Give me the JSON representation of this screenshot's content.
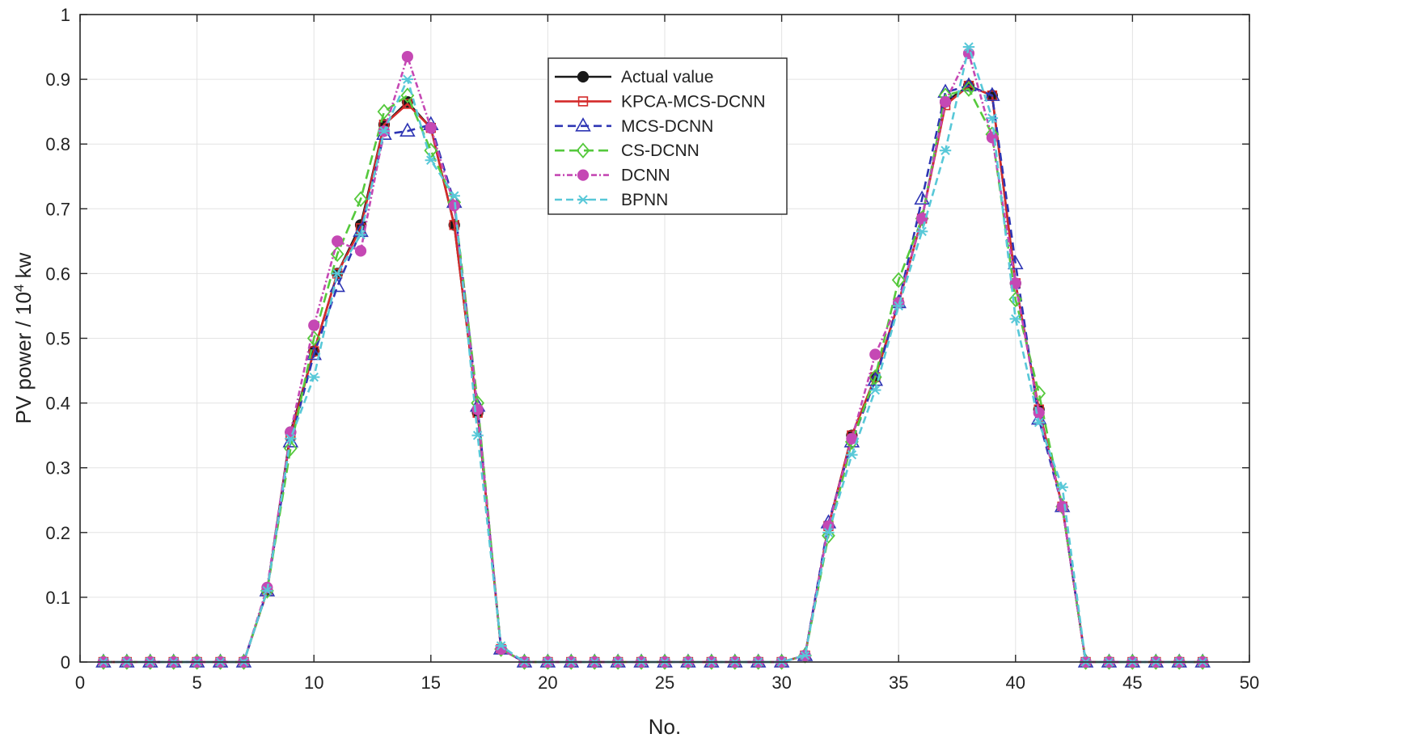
{
  "chart_data": {
    "type": "line",
    "title": "",
    "xlabel": "No.",
    "ylabel_prefix": "PV power / 10",
    "ylabel_exp": "4",
    "ylabel_suffix": " kw",
    "xlim": [
      0,
      50
    ],
    "ylim": [
      0,
      1
    ],
    "xticks": [
      0,
      5,
      10,
      15,
      20,
      25,
      30,
      35,
      40,
      45,
      50
    ],
    "yticks": [
      0,
      0.1,
      0.2,
      0.3,
      0.4,
      0.5,
      0.6,
      0.7,
      0.8,
      0.9,
      1
    ],
    "grid": true,
    "legend_position": "top-center",
    "x": [
      1,
      2,
      3,
      4,
      5,
      6,
      7,
      8,
      9,
      10,
      11,
      12,
      13,
      14,
      15,
      16,
      17,
      18,
      19,
      20,
      21,
      22,
      23,
      24,
      25,
      26,
      27,
      28,
      29,
      30,
      31,
      32,
      33,
      34,
      35,
      36,
      37,
      38,
      39,
      40,
      41,
      42,
      43,
      44,
      45,
      46,
      47,
      48
    ],
    "series": [
      {
        "name": "Actual value",
        "color": "#1a1a1a",
        "dash": "",
        "marker": "filled-circle",
        "values": [
          0,
          0,
          0,
          0,
          0,
          0,
          0,
          0.11,
          0.355,
          0.48,
          0.6,
          0.675,
          0.83,
          0.865,
          0.825,
          0.675,
          0.385,
          0.02,
          0,
          0,
          0,
          0,
          0,
          0,
          0,
          0,
          0,
          0,
          0,
          0,
          0.01,
          0.21,
          0.35,
          0.44,
          0.555,
          0.685,
          0.865,
          0.89,
          0.875,
          0.585,
          0.39,
          0.24,
          0,
          0,
          0,
          0,
          0,
          0
        ]
      },
      {
        "name": "KPCA-MCS-DCNN",
        "color": "#d42a2a",
        "dash": "",
        "marker": "square",
        "values": [
          0,
          0,
          0,
          0,
          0,
          0,
          0,
          0.11,
          0.35,
          0.48,
          0.6,
          0.67,
          0.83,
          0.862,
          0.825,
          0.675,
          0.385,
          0.02,
          0,
          0,
          0,
          0,
          0,
          0,
          0,
          0,
          0,
          0,
          0,
          0,
          0.01,
          0.21,
          0.35,
          0.44,
          0.555,
          0.685,
          0.86,
          0.89,
          0.875,
          0.585,
          0.39,
          0.24,
          0,
          0,
          0,
          0,
          0,
          0
        ]
      },
      {
        "name": "MCS-DCNN",
        "color": "#2e35b4",
        "dash": "10,6",
        "marker": "triangle",
        "values": [
          0,
          0,
          0,
          0,
          0,
          0,
          0,
          0.11,
          0.34,
          0.475,
          0.58,
          0.665,
          0.815,
          0.82,
          0.83,
          0.71,
          0.395,
          0.02,
          0,
          0,
          0,
          0,
          0,
          0,
          0,
          0,
          0,
          0,
          0,
          0,
          0.01,
          0.215,
          0.34,
          0.435,
          0.555,
          0.715,
          0.88,
          0.89,
          0.875,
          0.615,
          0.375,
          0.24,
          0,
          0,
          0,
          0,
          0,
          0
        ]
      },
      {
        "name": "CS-DCNN",
        "color": "#55c93c",
        "dash": "12,6",
        "marker": "diamond",
        "values": [
          0,
          0,
          0,
          0,
          0,
          0,
          0,
          0.11,
          0.33,
          0.5,
          0.63,
          0.715,
          0.85,
          0.875,
          0.79,
          0.71,
          0.4,
          0.02,
          0,
          0,
          0,
          0,
          0,
          0,
          0,
          0,
          0,
          0,
          0,
          0,
          0.01,
          0.195,
          0.34,
          0.44,
          0.59,
          0.685,
          0.875,
          0.885,
          0.815,
          0.56,
          0.415,
          0.24,
          0,
          0,
          0,
          0,
          0,
          0
        ]
      },
      {
        "name": "DCNN",
        "color": "#c548b4",
        "dash": "7,3,2,3",
        "marker": "filled-circle",
        "values": [
          0,
          0,
          0,
          0,
          0,
          0,
          0,
          0.115,
          0.355,
          0.52,
          0.65,
          0.635,
          0.82,
          0.935,
          0.825,
          0.705,
          0.39,
          0.02,
          0,
          0,
          0,
          0,
          0,
          0,
          0,
          0,
          0,
          0,
          0,
          0,
          0.01,
          0.21,
          0.345,
          0.475,
          0.555,
          0.685,
          0.865,
          0.94,
          0.81,
          0.585,
          0.385,
          0.24,
          0,
          0,
          0,
          0,
          0,
          0
        ]
      },
      {
        "name": "BPNN",
        "color": "#58c8d8",
        "dash": "9,5",
        "marker": "star",
        "values": [
          0,
          0,
          0,
          0,
          0,
          0,
          0,
          0.11,
          0.345,
          0.44,
          0.6,
          0.66,
          0.82,
          0.9,
          0.775,
          0.72,
          0.35,
          0.025,
          0,
          0,
          0,
          0,
          0,
          0,
          0,
          0,
          0,
          0,
          0,
          0,
          0.01,
          0.2,
          0.32,
          0.42,
          0.55,
          0.665,
          0.79,
          0.95,
          0.84,
          0.53,
          0.37,
          0.27,
          0,
          0,
          0,
          0,
          0,
          0
        ]
      }
    ]
  }
}
